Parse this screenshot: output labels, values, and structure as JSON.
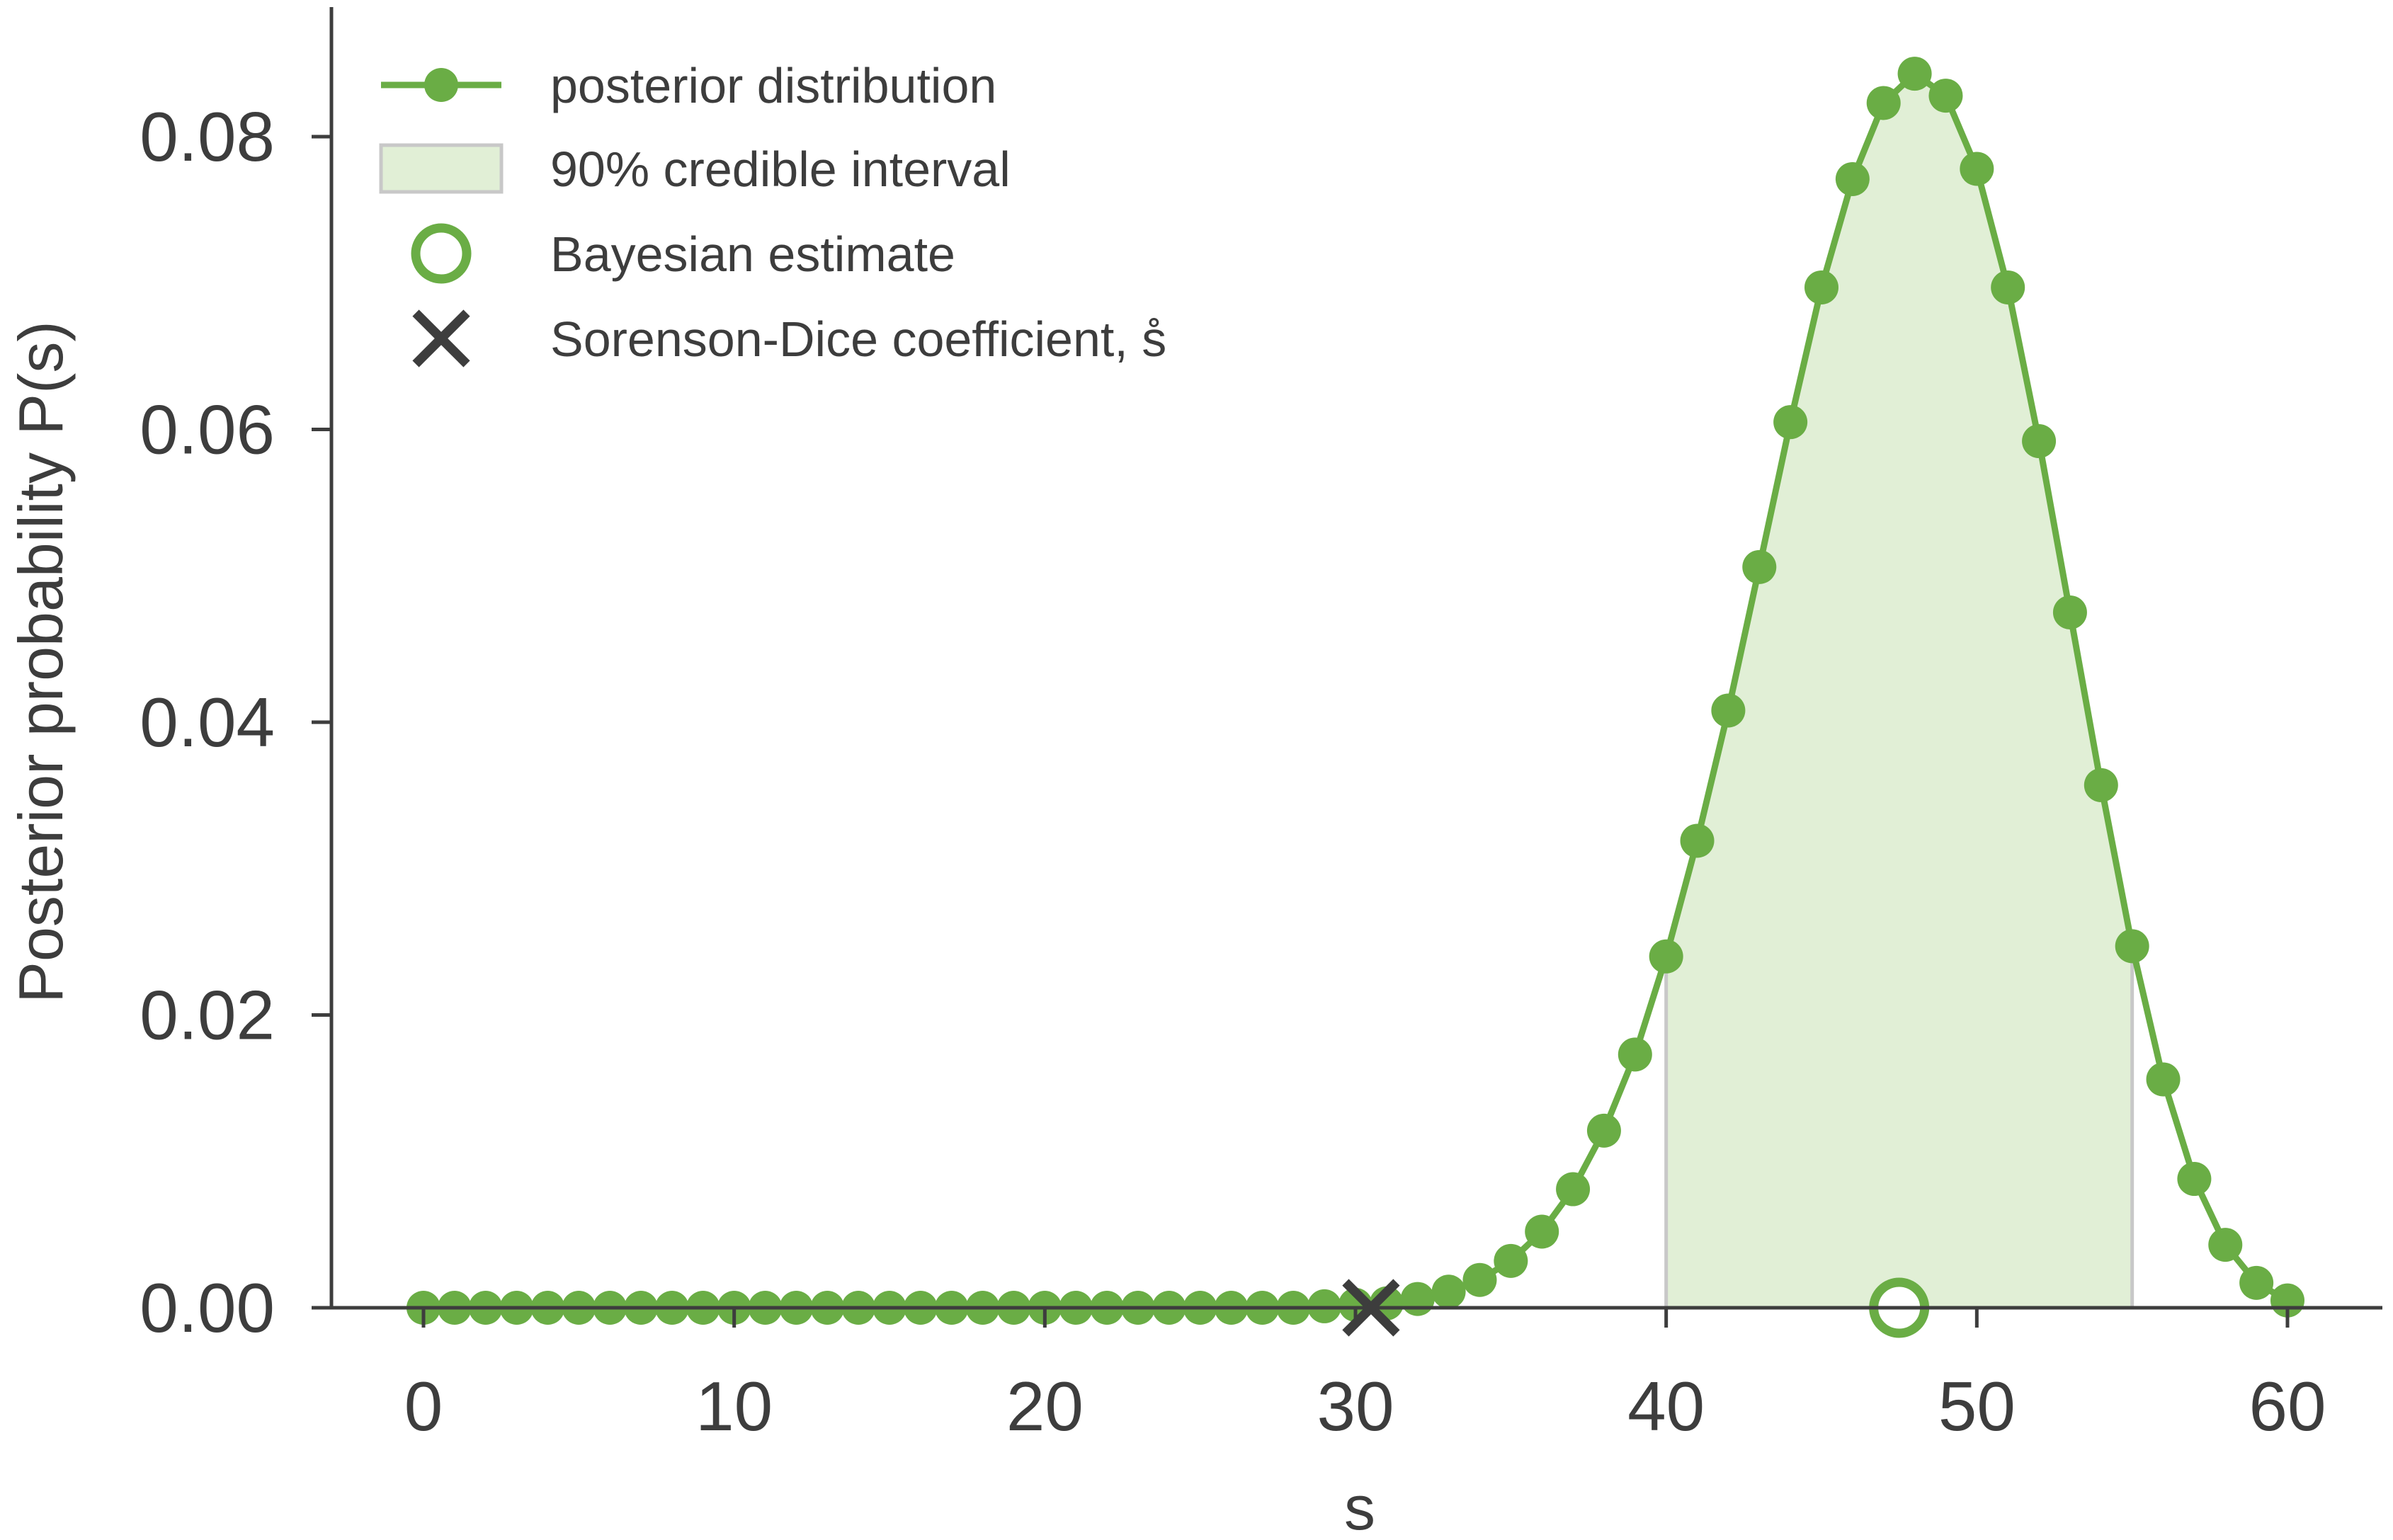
{
  "chart_data": {
    "type": "line",
    "title": "",
    "xlabel": "s",
    "ylabel": "Posterior probability P(s)",
    "xlim": [
      -3,
      63
    ],
    "ylim": [
      0,
      0.088
    ],
    "xticks": [
      0,
      10,
      20,
      30,
      40,
      50,
      60
    ],
    "yticks": [
      0.0,
      0.02,
      0.04,
      0.06,
      0.08
    ],
    "xtick_labels": [
      "0",
      "10",
      "20",
      "30",
      "40",
      "50",
      "60"
    ],
    "ytick_labels": [
      "0.00",
      "0.02",
      "0.04",
      "0.06",
      "0.08"
    ],
    "grid": false,
    "legend_position": "top-left",
    "colors": {
      "series": "#6aad45",
      "fill": "#e1efd6",
      "interval_edge": "#c8c8c8",
      "marker_x": "#3d3d3d",
      "axis": "#3d3d3d"
    },
    "series": [
      {
        "name": "posterior distribution",
        "x": [
          0,
          1,
          2,
          3,
          4,
          5,
          6,
          7,
          8,
          9,
          10,
          11,
          12,
          13,
          14,
          15,
          16,
          17,
          18,
          19,
          20,
          21,
          22,
          23,
          24,
          25,
          26,
          27,
          28,
          29,
          30,
          31,
          32,
          33,
          34,
          35,
          36,
          37,
          38,
          39,
          40,
          41,
          42,
          43,
          44,
          45,
          46,
          47,
          48,
          49,
          50,
          51,
          52,
          53,
          54,
          55,
          56,
          57,
          58,
          59,
          60
        ],
        "values": [
          0,
          0,
          0,
          0,
          0,
          0,
          0,
          0,
          0,
          0,
          0,
          0,
          0,
          0,
          0,
          0,
          0,
          0,
          0,
          0,
          0,
          0,
          0,
          0,
          0,
          0,
          0,
          0,
          0,
          0.0001,
          0.0002,
          0.0003,
          0.0006,
          0.0011,
          0.0019,
          0.0032,
          0.0052,
          0.0081,
          0.0121,
          0.0173,
          0.024,
          0.0319,
          0.0408,
          0.0506,
          0.0605,
          0.0697,
          0.0771,
          0.0823,
          0.0843,
          0.0828,
          0.0778,
          0.0697,
          0.0592,
          0.0475,
          0.0357,
          0.0247,
          0.0156,
          0.0088,
          0.0043,
          0.0017,
          0.0005
        ]
      }
    ],
    "credible_interval": {
      "name": "90% credible interval",
      "x_low": 40,
      "x_high": 55
    },
    "bayesian_estimate": {
      "name": "Bayesian estimate",
      "x": 47.5,
      "y": 0
    },
    "sorenson_dice": {
      "name": "Sorenson-Dice coefficient, ",
      "symbol": "s",
      "x": 30.5,
      "y": 0
    }
  }
}
